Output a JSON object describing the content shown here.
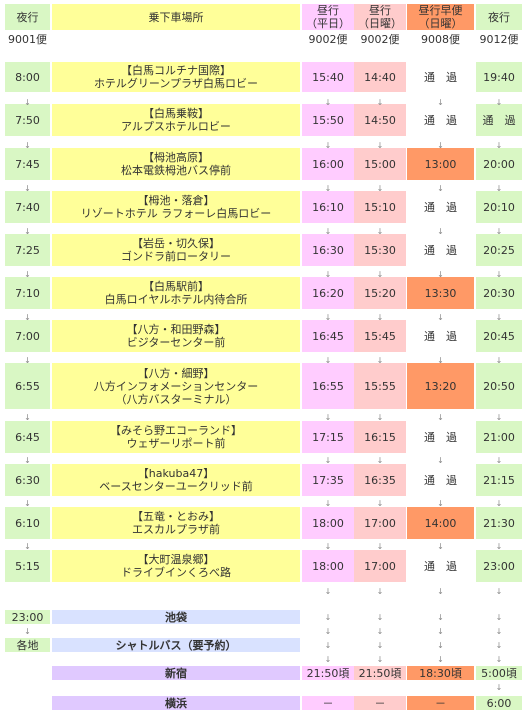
{
  "headers": [
    {
      "key": "c0",
      "lines": [
        "夜行"
      ],
      "num": "9001便"
    },
    {
      "key": "c1",
      "lines": [
        "乗下車場所"
      ],
      "num": ""
    },
    {
      "key": "c2",
      "lines": [
        "昼行",
        "（平日）"
      ],
      "num": "9002便"
    },
    {
      "key": "c3",
      "lines": [
        "昼行",
        "（日曜）"
      ],
      "num": "9002便"
    },
    {
      "key": "c4",
      "lines": [
        "昼行早便",
        "（日曜）"
      ],
      "num": "9008便"
    },
    {
      "key": "c5",
      "lines": [
        "夜行"
      ],
      "num": "9012便"
    }
  ],
  "arrow_symbol": "↓",
  "stops": [
    {
      "night1": "8:00",
      "place": [
        "【白馬コルチナ国際】",
        "ホテルグリーンプラザ白馬ロビー"
      ],
      "weekday": "15:40",
      "sunday": "14:40",
      "early": "通　過",
      "night2": "19:40"
    },
    {
      "night1": "7:50",
      "place": [
        "【白馬乗鞍】",
        "アルプスホテルロビー"
      ],
      "weekday": "15:50",
      "sunday": "14:50",
      "early": "通　過",
      "night2": "通　過"
    },
    {
      "night1": "7:45",
      "place": [
        "【栂池高原】",
        "松本電鉄栂池バス停前"
      ],
      "weekday": "16:00",
      "sunday": "15:00",
      "early": "13:00",
      "night2": "20:00"
    },
    {
      "night1": "7:40",
      "place": [
        "【栂池・落倉】",
        "リゾートホテル ラフォーレ白馬ロビー"
      ],
      "weekday": "16:10",
      "sunday": "15:10",
      "early": "通　過",
      "night2": "20:10"
    },
    {
      "night1": "7:25",
      "place": [
        "【岩岳・切久保】",
        "ゴンドラ前ロータリー"
      ],
      "weekday": "16:30",
      "sunday": "15:30",
      "early": "通　過",
      "night2": "20:25"
    },
    {
      "night1": "7:10",
      "place": [
        "【白馬駅前】",
        "白馬ロイヤルホテル内待合所"
      ],
      "weekday": "16:20",
      "sunday": "15:20",
      "early": "13:30",
      "night2": "20:30"
    },
    {
      "night1": "7:00",
      "place": [
        "【八方・和田野森】",
        "ビジターセンター前"
      ],
      "weekday": "16:45",
      "sunday": "15:45",
      "early": "通　過",
      "night2": "20:45"
    },
    {
      "night1": "6:55",
      "place": [
        "【八方・細野】",
        "八方インフォメーションセンター",
        "（八方バスターミナル）"
      ],
      "weekday": "16:55",
      "sunday": "15:55",
      "early": "13:20",
      "night2": "20:50"
    },
    {
      "night1": "6:45",
      "place": [
        "【みそら野エコーランド】",
        "ウェザーリポート前"
      ],
      "weekday": "17:15",
      "sunday": "16:15",
      "early": "通　過",
      "night2": "21:00"
    },
    {
      "night1": "6:30",
      "place": [
        "【hakuba47】",
        "ベースセンターユークリッド前"
      ],
      "weekday": "17:35",
      "sunday": "16:35",
      "early": "通　過",
      "night2": "21:15"
    },
    {
      "night1": "6:10",
      "place": [
        "【五竜・とおみ】",
        "エスカルプラザ前"
      ],
      "weekday": "18:00",
      "sunday": "17:00",
      "early": "14:00",
      "night2": "21:30"
    },
    {
      "night1": "5:15",
      "place": [
        "【大町温泉郷】",
        "ドライブインくろべ路"
      ],
      "weekday": "18:00",
      "sunday": "17:00",
      "early": "通　過",
      "night2": "23:00"
    }
  ],
  "terminals": {
    "ikebukuro": {
      "time": "23:00",
      "place": "池袋"
    },
    "shuttle": {
      "time": "各地",
      "place": "シャトルバス（要予約）"
    },
    "shinjuku": {
      "place": "新宿",
      "weekday": "21:50頃",
      "sunday": "21:50頃",
      "early": "18:30頃",
      "night2": "5:00頃"
    },
    "yokohama": {
      "place": "横浜",
      "weekday": "－",
      "sunday": "－",
      "early": "－",
      "night2": "6:00"
    }
  },
  "colors": {
    "green": "#d9f7c4",
    "yellow": "#ffff99",
    "pink_weekday": "#ffccff",
    "pink_sunday": "#ffcccc",
    "orange_early": "#ff9966",
    "blue_terminal": "#d9e2ff",
    "purple_terminal": "#e0c9ff"
  }
}
